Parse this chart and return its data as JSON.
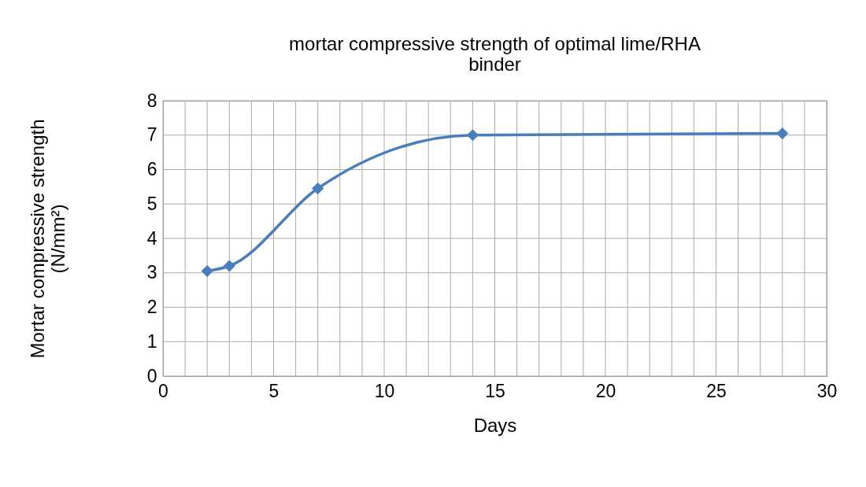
{
  "chart_data": {
    "type": "line",
    "title": "mortar compressive strength of optimal lime/RHA\nbinder",
    "xlabel": "Days",
    "ylabel": "Mortar compressive strength\n(N/mm²)",
    "x": [
      2,
      3,
      7,
      14,
      28
    ],
    "series": [
      {
        "color": "#4a7ebb",
        "values": [
          3.05,
          3.2,
          5.45,
          7.0,
          7.05
        ]
      }
    ],
    "xlim": [
      0,
      30
    ],
    "ylim": [
      0,
      8
    ],
    "xticks": [
      0,
      {
        "value": 1,
        "label": null
      },
      {
        "value": 2,
        "label": null
      },
      {
        "value": 3,
        "label": null
      },
      {
        "value": 4,
        "label": null
      },
      5,
      {
        "value": 6,
        "label": null
      },
      {
        "value": 7,
        "label": null
      },
      {
        "value": 8,
        "label": null
      },
      {
        "value": 9,
        "label": null
      },
      10,
      {
        "value": 11,
        "label": null
      },
      {
        "value": 12,
        "label": null
      },
      {
        "value": 13,
        "label": null
      },
      {
        "value": 14,
        "label": null
      },
      15,
      {
        "value": 16,
        "label": null
      },
      {
        "value": 17,
        "label": null
      },
      {
        "value": 18,
        "label": null
      },
      {
        "value": 19,
        "label": null
      },
      20,
      {
        "value": 21,
        "label": null
      },
      {
        "value": 22,
        "label": null
      },
      {
        "value": 23,
        "label": null
      },
      {
        "value": 24,
        "label": null
      },
      25,
      {
        "value": 26,
        "label": null
      },
      {
        "value": 27,
        "label": null
      },
      {
        "value": 28,
        "label": null
      },
      {
        "value": 29,
        "label": null
      },
      30
    ],
    "yticks": [
      0,
      1,
      2,
      3,
      4,
      5,
      6,
      7,
      8
    ],
    "grid": true,
    "marker": "diamond",
    "line_style": "solid"
  }
}
